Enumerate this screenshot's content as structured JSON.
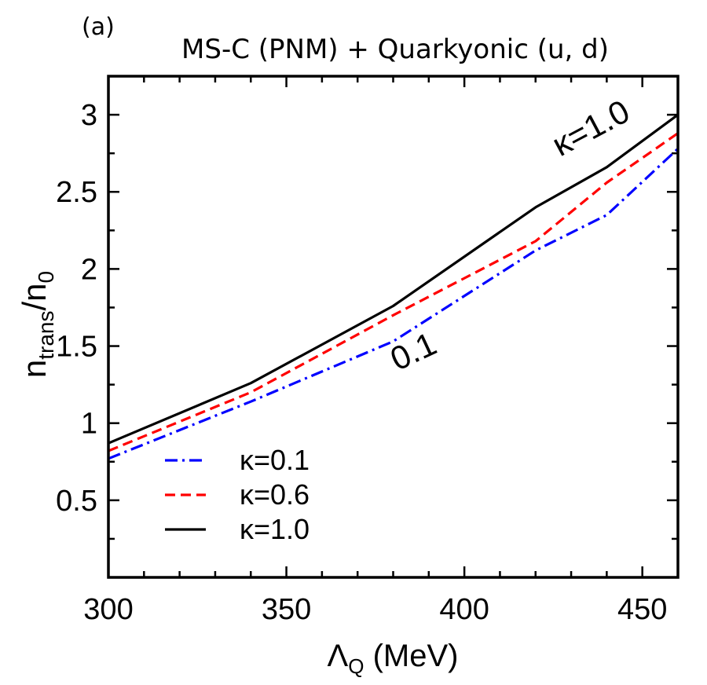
{
  "panel_label": "(a)",
  "chart_data": {
    "type": "line",
    "title": "MS-C (PNM) + Quarkyonic (u, d)",
    "xlabel": {
      "main": "Λ",
      "sub": "Q",
      "unit": " (MeV)"
    },
    "ylabel": {
      "main": "n",
      "sub": "trans",
      "mid": "/n",
      "sub2": "0"
    },
    "xlim": [
      300,
      460
    ],
    "ylim": [
      0,
      3.25
    ],
    "x_ticks": [
      300,
      350,
      400,
      450
    ],
    "x_tick_labels": [
      "300",
      "350",
      "400",
      "450"
    ],
    "y_ticks": [
      0.5,
      1,
      1.5,
      2,
      2.5,
      3
    ],
    "y_tick_labels": [
      "0.5",
      "1",
      "1.5",
      "2",
      "2.5",
      "3"
    ],
    "grid": false,
    "legend_position": "lower-left",
    "series": [
      {
        "name": "κ=0.1",
        "color": "#0000ff",
        "dash": "dash-dot",
        "x": [
          300,
          340,
          380,
          420,
          440,
          460
        ],
        "y": [
          0.77,
          1.14,
          1.53,
          2.12,
          2.35,
          2.78
        ]
      },
      {
        "name": "κ=0.6",
        "color": "#ff0000",
        "dash": "dashed",
        "x": [
          300,
          340,
          380,
          420,
          440,
          460
        ],
        "y": [
          0.82,
          1.2,
          1.7,
          2.18,
          2.56,
          2.88
        ]
      },
      {
        "name": "κ=1.0",
        "color": "#000000",
        "dash": "solid",
        "x": [
          300,
          340,
          380,
          420,
          440,
          460
        ],
        "y": [
          0.87,
          1.26,
          1.76,
          2.4,
          2.66,
          3.0
        ]
      }
    ],
    "annotations": [
      {
        "text": "κ=1.0",
        "x": 437,
        "y": 2.85,
        "angle": -28
      },
      {
        "text": "0.1",
        "x": 387,
        "y": 1.4,
        "angle": -25
      }
    ]
  }
}
